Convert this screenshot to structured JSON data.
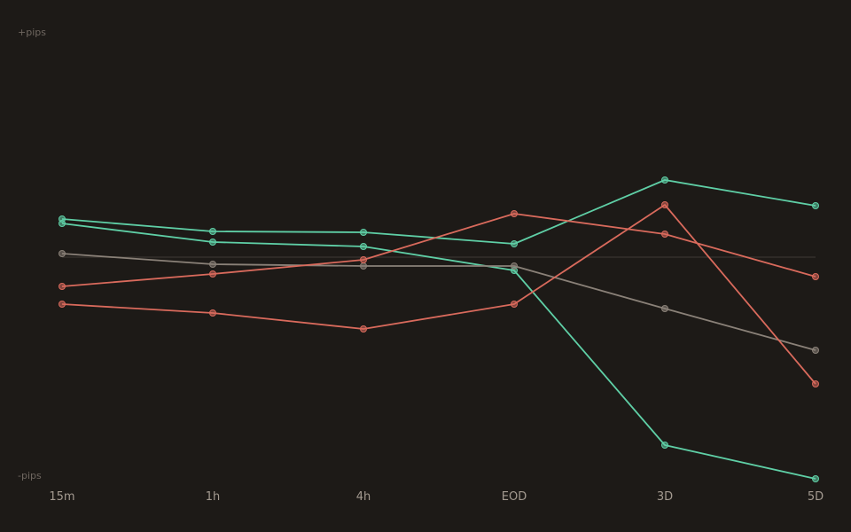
{
  "chart_data": {
    "type": "line",
    "title": "",
    "xlabel": "",
    "ylabel": "",
    "y_top_label": "+pips",
    "y_bottom_label": "-pips",
    "categories": [
      "15m",
      "1h",
      "4h",
      "EOD",
      "3D",
      "5D"
    ],
    "ylim": [
      -250,
      250
    ],
    "zero_line": true,
    "grid": false,
    "legend": "none",
    "series": [
      {
        "color": "#5fcfa6",
        "values": [
          43,
          29,
          28,
          15,
          87,
          58
        ]
      },
      {
        "color": "#5fcfa6",
        "values": [
          38,
          17,
          12,
          -15,
          -212,
          -250
        ]
      },
      {
        "color": "#8a8178",
        "values": [
          4,
          -8,
          -10,
          -10,
          -58,
          -105
        ]
      },
      {
        "color": "#d96a5c",
        "values": [
          -33,
          -19,
          -3,
          49,
          26,
          -22
        ]
      },
      {
        "color": "#d96a5c",
        "values": [
          -53,
          -63,
          -81,
          -53,
          59,
          -143
        ]
      }
    ],
    "colors": {
      "background": "#1d1a17",
      "zero_line": "#35302b",
      "tick_label": "#a39a90",
      "axis_end_label": "#6f6760"
    }
  }
}
